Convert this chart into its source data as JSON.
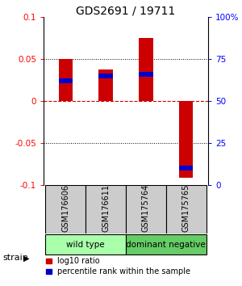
{
  "title": "GDS2691 / 19711",
  "samples": [
    "GSM176606",
    "GSM176611",
    "GSM175764",
    "GSM175765"
  ],
  "log10_ratio": [
    0.05,
    0.038,
    0.075,
    -0.092
  ],
  "percentile_rank": [
    0.62,
    0.65,
    0.66,
    0.1
  ],
  "groups": [
    {
      "label": "wild type",
      "samples": [
        0,
        1
      ],
      "color": "#aaffaa"
    },
    {
      "label": "dominant negative",
      "samples": [
        2,
        3
      ],
      "color": "#66cc66"
    }
  ],
  "group_label": "strain",
  "ylim": [
    -0.1,
    0.1
  ],
  "yticks_left": [
    -0.1,
    -0.05,
    0,
    0.05,
    0.1
  ],
  "yticks_right": [
    0,
    25,
    50,
    75,
    100
  ],
  "bar_color_red": "#cc0000",
  "bar_color_blue": "#0000cc",
  "zero_line_color": "#cc0000",
  "grid_color": "#000000",
  "bg_color": "#ffffff",
  "title_fontsize": 10,
  "tick_fontsize": 7.5,
  "label_fontsize": 7,
  "legend_fontsize": 7
}
